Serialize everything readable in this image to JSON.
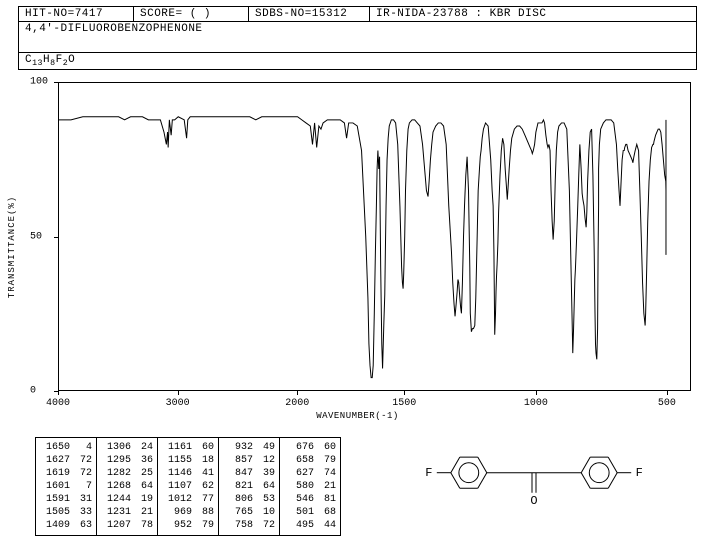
{
  "header": {
    "hit_no": "HIT-NO=7417",
    "score": "SCORE=  (   )",
    "sdbs_no": "SDBS-NO=15312",
    "ir_info": "IR-NIDA-23788 : KBR DISC"
  },
  "compound_name": "4,4'-DIFLUOROBENZOPHENONE",
  "formula_html": "C<sub>13</sub>H<sub>8</sub>F<sub>2</sub>O",
  "chart": {
    "type": "line",
    "xlabel": "WAVENUMBER(-1)",
    "ylabel": "TRANSMITTANCE(%)",
    "xlim": [
      4000,
      400
    ],
    "ylim": [
      0,
      100
    ],
    "xticks": [
      4000,
      3000,
      2000,
      1500,
      1000,
      500
    ],
    "yticks": [
      0,
      50,
      100
    ],
    "line_color": "#000000",
    "background_color": "#ffffff",
    "border_color": "#000000",
    "data": [
      [
        4000,
        88
      ],
      [
        3900,
        88
      ],
      [
        3800,
        89
      ],
      [
        3700,
        89
      ],
      [
        3600,
        89
      ],
      [
        3500,
        89
      ],
      [
        3450,
        88
      ],
      [
        3400,
        89
      ],
      [
        3350,
        89
      ],
      [
        3300,
        89
      ],
      [
        3250,
        88
      ],
      [
        3200,
        88
      ],
      [
        3150,
        88
      ],
      [
        3120,
        84
      ],
      [
        3110,
        82
      ],
      [
        3100,
        80
      ],
      [
        3090,
        84
      ],
      [
        3085,
        79
      ],
      [
        3075,
        88
      ],
      [
        3060,
        83
      ],
      [
        3050,
        88
      ],
      [
        3030,
        88
      ],
      [
        3000,
        89
      ],
      [
        2950,
        88
      ],
      [
        2930,
        82
      ],
      [
        2920,
        88
      ],
      [
        2900,
        89
      ],
      [
        2850,
        89
      ],
      [
        2800,
        89
      ],
      [
        2700,
        89
      ],
      [
        2600,
        89
      ],
      [
        2500,
        89
      ],
      [
        2400,
        89
      ],
      [
        2350,
        88
      ],
      [
        2300,
        89
      ],
      [
        2200,
        89
      ],
      [
        2100,
        89
      ],
      [
        2050,
        89
      ],
      [
        2000,
        89
      ],
      [
        1980,
        88
      ],
      [
        1960,
        87
      ],
      [
        1940,
        86
      ],
      [
        1930,
        80
      ],
      [
        1920,
        87
      ],
      [
        1910,
        79
      ],
      [
        1900,
        86
      ],
      [
        1890,
        85
      ],
      [
        1880,
        87
      ],
      [
        1860,
        88
      ],
      [
        1840,
        88
      ],
      [
        1820,
        88
      ],
      [
        1800,
        88
      ],
      [
        1780,
        87
      ],
      [
        1770,
        82
      ],
      [
        1760,
        87
      ],
      [
        1740,
        87
      ],
      [
        1720,
        86
      ],
      [
        1700,
        78
      ],
      [
        1680,
        50
      ],
      [
        1670,
        30
      ],
      [
        1665,
        15
      ],
      [
        1660,
        8
      ],
      [
        1655,
        4
      ],
      [
        1650,
        4
      ],
      [
        1645,
        8
      ],
      [
        1640,
        25
      ],
      [
        1635,
        45
      ],
      [
        1630,
        60
      ],
      [
        1627,
        72
      ],
      [
        1623,
        78
      ],
      [
        1619,
        72
      ],
      [
        1615,
        76
      ],
      [
        1610,
        40
      ],
      [
        1605,
        15
      ],
      [
        1601,
        7
      ],
      [
        1598,
        15
      ],
      [
        1595,
        22
      ],
      [
        1591,
        31
      ],
      [
        1588,
        45
      ],
      [
        1585,
        60
      ],
      [
        1580,
        75
      ],
      [
        1575,
        82
      ],
      [
        1570,
        86
      ],
      [
        1560,
        88
      ],
      [
        1550,
        88
      ],
      [
        1540,
        87
      ],
      [
        1530,
        80
      ],
      [
        1520,
        60
      ],
      [
        1512,
        40
      ],
      [
        1508,
        35
      ],
      [
        1505,
        33
      ],
      [
        1502,
        38
      ],
      [
        1498,
        50
      ],
      [
        1495,
        65
      ],
      [
        1490,
        78
      ],
      [
        1485,
        85
      ],
      [
        1480,
        87
      ],
      [
        1470,
        88
      ],
      [
        1460,
        88
      ],
      [
        1450,
        87
      ],
      [
        1440,
        86
      ],
      [
        1430,
        80
      ],
      [
        1420,
        70
      ],
      [
        1415,
        65
      ],
      [
        1409,
        63
      ],
      [
        1405,
        68
      ],
      [
        1400,
        75
      ],
      [
        1395,
        80
      ],
      [
        1390,
        84
      ],
      [
        1380,
        86
      ],
      [
        1370,
        87
      ],
      [
        1360,
        87
      ],
      [
        1350,
        86
      ],
      [
        1340,
        80
      ],
      [
        1330,
        60
      ],
      [
        1320,
        45
      ],
      [
        1315,
        35
      ],
      [
        1310,
        28
      ],
      [
        1306,
        24
      ],
      [
        1302,
        28
      ],
      [
        1298,
        32
      ],
      [
        1295,
        36
      ],
      [
        1292,
        35
      ],
      [
        1288,
        30
      ],
      [
        1285,
        27
      ],
      [
        1282,
        25
      ],
      [
        1278,
        35
      ],
      [
        1274,
        50
      ],
      [
        1270,
        60
      ],
      [
        1268,
        64
      ],
      [
        1265,
        70
      ],
      [
        1260,
        76
      ],
      [
        1255,
        65
      ],
      [
        1250,
        40
      ],
      [
        1248,
        25
      ],
      [
        1244,
        19
      ],
      [
        1240,
        20
      ],
      [
        1236,
        20
      ],
      [
        1231,
        21
      ],
      [
        1227,
        30
      ],
      [
        1222,
        50
      ],
      [
        1218,
        65
      ],
      [
        1213,
        72
      ],
      [
        1210,
        76
      ],
      [
        1207,
        78
      ],
      [
        1203,
        82
      ],
      [
        1198,
        85
      ],
      [
        1190,
        87
      ],
      [
        1180,
        86
      ],
      [
        1170,
        75
      ],
      [
        1165,
        65
      ],
      [
        1161,
        60
      ],
      [
        1158,
        45
      ],
      [
        1155,
        18
      ],
      [
        1152,
        25
      ],
      [
        1150,
        32
      ],
      [
        1148,
        37
      ],
      [
        1146,
        41
      ],
      [
        1143,
        48
      ],
      [
        1140,
        58
      ],
      [
        1135,
        70
      ],
      [
        1130,
        78
      ],
      [
        1125,
        82
      ],
      [
        1120,
        80
      ],
      [
        1115,
        72
      ],
      [
        1110,
        66
      ],
      [
        1107,
        62
      ],
      [
        1104,
        66
      ],
      [
        1100,
        72
      ],
      [
        1095,
        78
      ],
      [
        1090,
        82
      ],
      [
        1080,
        85
      ],
      [
        1070,
        86
      ],
      [
        1060,
        86
      ],
      [
        1050,
        85
      ],
      [
        1040,
        83
      ],
      [
        1030,
        81
      ],
      [
        1020,
        79
      ],
      [
        1015,
        78
      ],
      [
        1012,
        77
      ],
      [
        1008,
        78
      ],
      [
        1003,
        80
      ],
      [
        998,
        84
      ],
      [
        990,
        87
      ],
      [
        980,
        87
      ],
      [
        975,
        87
      ],
      [
        969,
        88
      ],
      [
        965,
        87
      ],
      [
        960,
        83
      ],
      [
        955,
        80
      ],
      [
        952,
        79
      ],
      [
        948,
        80
      ],
      [
        944,
        78
      ],
      [
        940,
        65
      ],
      [
        936,
        55
      ],
      [
        932,
        49
      ],
      [
        928,
        55
      ],
      [
        924,
        68
      ],
      [
        920,
        78
      ],
      [
        915,
        84
      ],
      [
        910,
        86
      ],
      [
        900,
        87
      ],
      [
        890,
        87
      ],
      [
        880,
        85
      ],
      [
        870,
        65
      ],
      [
        865,
        45
      ],
      [
        860,
        25
      ],
      [
        857,
        12
      ],
      [
        854,
        20
      ],
      [
        851,
        30
      ],
      [
        849,
        36
      ],
      [
        847,
        39
      ],
      [
        845,
        43
      ],
      [
        842,
        50
      ],
      [
        838,
        60
      ],
      [
        834,
        70
      ],
      [
        830,
        80
      ],
      [
        825,
        72
      ],
      [
        821,
        64
      ],
      [
        818,
        62
      ],
      [
        814,
        60
      ],
      [
        810,
        56
      ],
      [
        806,
        53
      ],
      [
        803,
        58
      ],
      [
        800,
        68
      ],
      [
        795,
        78
      ],
      [
        790,
        84
      ],
      [
        785,
        85
      ],
      [
        780,
        70
      ],
      [
        775,
        45
      ],
      [
        772,
        25
      ],
      [
        770,
        15
      ],
      [
        768,
        12
      ],
      [
        765,
        10
      ],
      [
        762,
        20
      ],
      [
        760,
        45
      ],
      [
        758,
        60
      ],
      [
        758,
        72
      ],
      [
        755,
        80
      ],
      [
        750,
        85
      ],
      [
        740,
        87
      ],
      [
        730,
        88
      ],
      [
        720,
        88
      ],
      [
        710,
        88
      ],
      [
        700,
        87
      ],
      [
        690,
        80
      ],
      [
        685,
        72
      ],
      [
        680,
        65
      ],
      [
        676,
        60
      ],
      [
        672,
        68
      ],
      [
        668,
        75
      ],
      [
        664,
        78
      ],
      [
        660,
        78
      ],
      [
        658,
        79
      ],
      [
        654,
        80
      ],
      [
        650,
        80
      ],
      [
        645,
        78
      ],
      [
        640,
        77
      ],
      [
        635,
        76
      ],
      [
        630,
        75
      ],
      [
        627,
        74
      ],
      [
        623,
        76
      ],
      [
        618,
        78
      ],
      [
        612,
        80
      ],
      [
        605,
        78
      ],
      [
        600,
        65
      ],
      [
        595,
        50
      ],
      [
        590,
        35
      ],
      [
        585,
        25
      ],
      [
        580,
        21
      ],
      [
        578,
        25
      ],
      [
        574,
        40
      ],
      [
        570,
        55
      ],
      [
        565,
        68
      ],
      [
        560,
        75
      ],
      [
        555,
        79
      ],
      [
        550,
        80
      ],
      [
        548,
        80
      ],
      [
        546,
        81
      ],
      [
        543,
        82
      ],
      [
        540,
        83
      ],
      [
        535,
        84
      ],
      [
        530,
        85
      ],
      [
        525,
        85
      ],
      [
        520,
        84
      ],
      [
        515,
        80
      ],
      [
        510,
        75
      ],
      [
        505,
        70
      ],
      [
        501,
        68
      ],
      [
        498,
        65
      ],
      [
        496,
        55
      ],
      [
        495,
        44
      ],
      [
        493,
        50
      ],
      [
        490,
        65
      ],
      [
        485,
        78
      ],
      [
        480,
        84
      ],
      [
        475,
        86
      ],
      [
        470,
        87
      ],
      [
        460,
        88
      ],
      [
        450,
        88
      ],
      [
        440,
        88
      ],
      [
        430,
        88
      ],
      [
        420,
        87
      ],
      [
        410,
        86
      ],
      [
        400,
        85
      ]
    ]
  },
  "peak_table": {
    "columns_per_block": 2,
    "blocks": [
      [
        [
          1650,
          4
        ],
        [
          1627,
          72
        ],
        [
          1619,
          72
        ],
        [
          1601,
          7
        ],
        [
          1591,
          31
        ],
        [
          1505,
          33
        ],
        [
          1409,
          63
        ]
      ],
      [
        [
          1306,
          24
        ],
        [
          1295,
          36
        ],
        [
          1282,
          25
        ],
        [
          1268,
          64
        ],
        [
          1244,
          19
        ],
        [
          1231,
          21
        ],
        [
          1207,
          78
        ]
      ],
      [
        [
          1161,
          60
        ],
        [
          1155,
          18
        ],
        [
          1146,
          41
        ],
        [
          1107,
          62
        ],
        [
          1012,
          77
        ],
        [
          969,
          88
        ],
        [
          952,
          79
        ]
      ],
      [
        [
          932,
          49
        ],
        [
          857,
          12
        ],
        [
          847,
          39
        ],
        [
          821,
          64
        ],
        [
          806,
          53
        ],
        [
          765,
          10
        ],
        [
          758,
          72
        ]
      ],
      [
        [
          676,
          60
        ],
        [
          658,
          79
        ],
        [
          627,
          74
        ],
        [
          580,
          21
        ],
        [
          546,
          81
        ],
        [
          501,
          68
        ],
        [
          495,
          44
        ]
      ]
    ]
  },
  "structure": {
    "atoms": [
      "F",
      "F",
      "O"
    ],
    "line_color": "#000000"
  }
}
